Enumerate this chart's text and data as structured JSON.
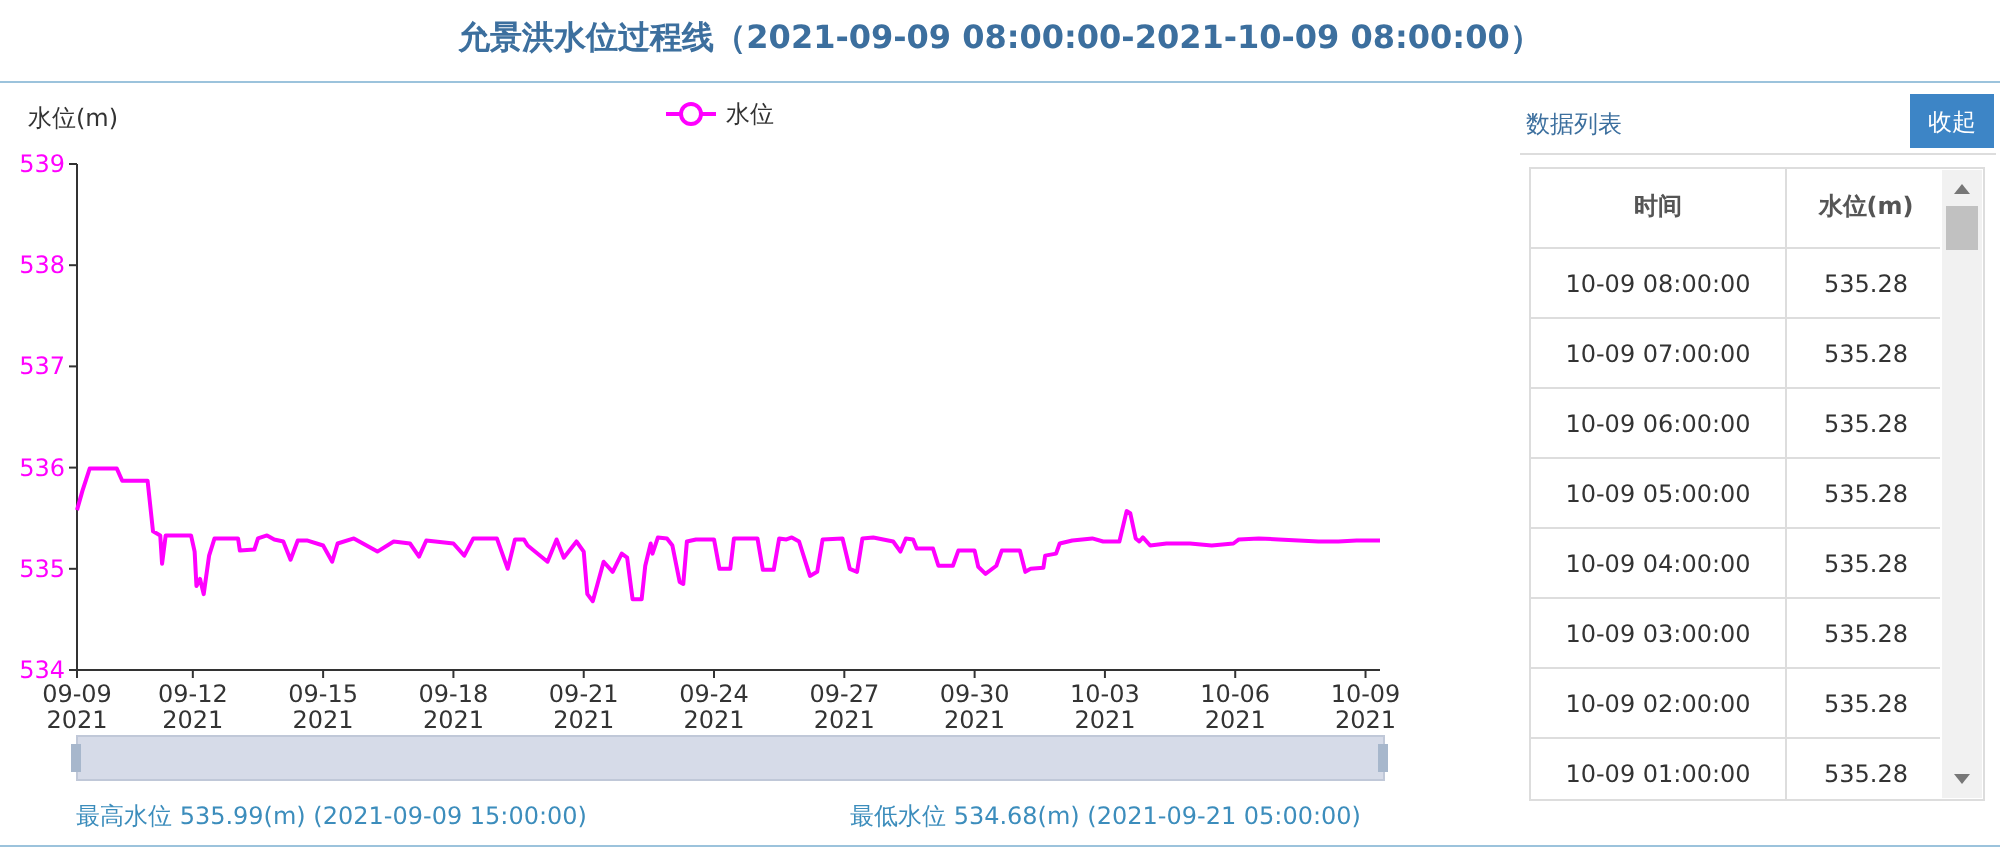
{
  "chart_data": [
    {
      "type": "line",
      "title": "允景洪水位过程线（2021-09-09 08:00:00-2021-10-09 08:00:00）",
      "ylabel": "水位(m)",
      "legend": "top",
      "xlim": [
        "2021-09-09T08:00",
        "2021-10-09T08:00"
      ],
      "xticks": [
        {
          "value": "2021-09-09T08:00",
          "label": "09-09\n2021"
        },
        {
          "value": "2021-09-12T00:00",
          "label": "09-12\n2021"
        },
        {
          "value": "2021-09-15T00:00",
          "label": "09-15\n2021"
        },
        {
          "value": "2021-09-18T00:00",
          "label": "09-18\n2021"
        },
        {
          "value": "2021-09-21T00:00",
          "label": "09-21\n2021"
        },
        {
          "value": "2021-09-24T00:00",
          "label": "09-24\n2021"
        },
        {
          "value": "2021-09-27T00:00",
          "label": "09-27\n2021"
        },
        {
          "value": "2021-09-30T00:00",
          "label": "09-30\n2021"
        },
        {
          "value": "2021-10-03T00:00",
          "label": "10-03\n2021"
        },
        {
          "value": "2021-10-06T00:00",
          "label": "10-06\n2021"
        },
        {
          "value": "2021-10-09T00:00",
          "label": "10-09\n2021"
        }
      ],
      "ylim": [
        534,
        539
      ],
      "yticks": [
        534,
        535,
        536,
        537,
        538,
        539
      ],
      "x": [
        "2021-09-09T08:00",
        "2021-09-09T11:00",
        "2021-09-09T15:00",
        "2021-09-10T06:00",
        "2021-09-10T09:00",
        "2021-09-10T23:00",
        "2021-09-11T02:00",
        "2021-09-11T06:00",
        "2021-09-11T07:00",
        "2021-09-11T09:00",
        "2021-09-11T23:00",
        "2021-09-12T01:00",
        "2021-09-12T02:00",
        "2021-09-12T04:00",
        "2021-09-12T06:00",
        "2021-09-12T09:00",
        "2021-09-12T12:00",
        "2021-09-13T01:00",
        "2021-09-13T02:00",
        "2021-09-13T10:00",
        "2021-09-13T12:00",
        "2021-09-13T17:00",
        "2021-09-13T21:00",
        "2021-09-14T02:00",
        "2021-09-14T06:00",
        "2021-09-14T10:00",
        "2021-09-14T15:00",
        "2021-09-15T00:00",
        "2021-09-15T05:00",
        "2021-09-15T08:00",
        "2021-09-15T17:00",
        "2021-09-15T22:00",
        "2021-09-16T06:00",
        "2021-09-16T15:00",
        "2021-09-17T00:00",
        "2021-09-17T05:00",
        "2021-09-17T09:00",
        "2021-09-18T00:00",
        "2021-09-18T06:00",
        "2021-09-18T11:00",
        "2021-09-19T00:00",
        "2021-09-19T06:00",
        "2021-09-19T10:00",
        "2021-09-19T15:00",
        "2021-09-19T17:00",
        "2021-09-20T04:00",
        "2021-09-20T09:00",
        "2021-09-20T13:00",
        "2021-09-20T20:00",
        "2021-09-21T00:00",
        "2021-09-21T02:00",
        "2021-09-21T05:00",
        "2021-09-21T11:00",
        "2021-09-21T16:00",
        "2021-09-21T21:00",
        "2021-09-22T00:00",
        "2021-09-22T03:00",
        "2021-09-22T08:00",
        "2021-09-22T10:00",
        "2021-09-22T13:00",
        "2021-09-22T14:00",
        "2021-09-22T17:00",
        "2021-09-22T22:00",
        "2021-09-23T01:00",
        "2021-09-23T05:00",
        "2021-09-23T07:00",
        "2021-09-23T09:00",
        "2021-09-23T14:00",
        "2021-09-24T00:00",
        "2021-09-24T03:00",
        "2021-09-24T09:00",
        "2021-09-24T11:00",
        "2021-09-25T00:00",
        "2021-09-25T03:00",
        "2021-09-25T09:00",
        "2021-09-25T12:00",
        "2021-09-25T16:00",
        "2021-09-25T19:00",
        "2021-09-25T23:00",
        "2021-09-26T05:00",
        "2021-09-26T09:00",
        "2021-09-26T12:00",
        "2021-09-26T23:00",
        "2021-09-27T03:00",
        "2021-09-27T07:00",
        "2021-09-27T10:00",
        "2021-09-27T16:00",
        "2021-09-28T03:00",
        "2021-09-28T07:00",
        "2021-09-28T10:00",
        "2021-09-28T14:00",
        "2021-09-28T16:00",
        "2021-09-29T01:00",
        "2021-09-29T04:00",
        "2021-09-29T12:00",
        "2021-09-29T15:00",
        "2021-09-30T00:00",
        "2021-09-30T02:00",
        "2021-09-30T06:00",
        "2021-09-30T12:00",
        "2021-09-30T15:00",
        "2021-10-01T01:00",
        "2021-10-01T04:00",
        "2021-10-01T07:00",
        "2021-10-01T14:00",
        "2021-10-01T15:00",
        "2021-10-01T21:00",
        "2021-10-01T23:00",
        "2021-10-02T06:00",
        "2021-10-02T17:00",
        "2021-10-02T23:00",
        "2021-10-03T08:00",
        "2021-10-03T12:00",
        "2021-10-03T14:00",
        "2021-10-03T17:00",
        "2021-10-03T19:00",
        "2021-10-03T21:00",
        "2021-10-04T01:00",
        "2021-10-04T10:00",
        "2021-10-04T23:00",
        "2021-10-05T11:00",
        "2021-10-05T23:00",
        "2021-10-06T02:00",
        "2021-10-06T13:00",
        "2021-10-07T00:00",
        "2021-10-07T22:00",
        "2021-10-08T09:00",
        "2021-10-08T19:00",
        "2021-10-09T08:00"
      ],
      "series": [
        {
          "name": "水位",
          "color": "#ff00ff",
          "values": [
            535.58,
            535.77,
            535.99,
            535.99,
            535.87,
            535.87,
            535.37,
            535.33,
            535.05,
            535.33,
            535.33,
            535.17,
            534.83,
            534.9,
            534.75,
            535.13,
            535.3,
            535.3,
            535.18,
            535.19,
            535.3,
            535.33,
            535.29,
            535.27,
            535.09,
            535.28,
            535.28,
            535.23,
            535.07,
            535.25,
            535.3,
            535.25,
            535.17,
            535.27,
            535.25,
            535.12,
            535.28,
            535.25,
            535.13,
            535.3,
            535.3,
            535.0,
            535.29,
            535.29,
            535.23,
            535.07,
            535.29,
            535.11,
            535.27,
            535.17,
            534.75,
            534.68,
            535.07,
            534.97,
            535.15,
            535.11,
            534.7,
            534.7,
            535.03,
            535.25,
            535.15,
            535.31,
            535.3,
            535.23,
            534.87,
            534.85,
            535.27,
            535.29,
            535.29,
            535.0,
            535.0,
            535.3,
            535.3,
            534.99,
            534.99,
            535.3,
            535.29,
            535.31,
            535.27,
            534.93,
            534.97,
            535.29,
            535.3,
            535.0,
            534.97,
            535.3,
            535.31,
            535.27,
            535.17,
            535.3,
            535.29,
            535.2,
            535.2,
            535.03,
            535.03,
            535.18,
            535.18,
            535.02,
            534.95,
            535.03,
            535.18,
            535.18,
            534.97,
            535.0,
            535.01,
            535.13,
            535.15,
            535.25,
            535.28,
            535.3,
            535.27,
            535.27,
            535.57,
            535.55,
            535.3,
            535.27,
            535.31,
            535.23,
            535.25,
            535.25,
            535.23,
            535.25,
            535.29,
            535.3,
            535.29,
            535.27,
            535.27,
            535.28,
            535.28
          ]
        }
      ],
      "annotations": [
        "最高水位 535.99(m) (2021-09-09 15:00:00)",
        "最低水位 534.68(m) (2021-09-21 05:00:00)"
      ]
    },
    {
      "type": "other",
      "title": "数据列表",
      "annotations": [
        "收起"
      ],
      "xlabel": "时间",
      "ylabel": "水位(m)",
      "data_labels": true,
      "categories": [
        "10-09 08:00:00",
        "10-09 07:00:00",
        "10-09 06:00:00",
        "10-09 05:00:00",
        "10-09 04:00:00",
        "10-09 03:00:00",
        "10-09 02:00:00",
        "10-09 01:00:00"
      ],
      "values": [
        535.28,
        535.28,
        535.28,
        535.28,
        535.28,
        535.28,
        535.28,
        535.28
      ]
    }
  ]
}
